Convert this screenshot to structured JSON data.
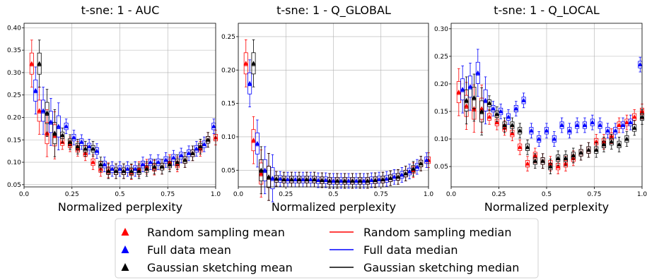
{
  "colors": {
    "random": "#ff0000",
    "full": "#0000ff",
    "gaussian": "#000000",
    "grid": "#b0b0b0"
  },
  "legend": {
    "items": [
      {
        "key": "random",
        "kind": "mean",
        "label": "Random sampling mean"
      },
      {
        "key": "full",
        "kind": "mean",
        "label": "Full data mean"
      },
      {
        "key": "gaussian",
        "kind": "mean",
        "label": "Gaussian sketching mean"
      },
      {
        "key": "random",
        "kind": "median",
        "label": "Random sampling median"
      },
      {
        "key": "full",
        "kind": "median",
        "label": "Full data median"
      },
      {
        "key": "gaussian",
        "kind": "median",
        "label": "Gaussian sketching median"
      }
    ]
  },
  "chart_data": [
    {
      "type": "box",
      "title": "t-sne: 1 - AUC",
      "xlabel": "Normalized perplexity",
      "ylabel": "",
      "xlim": [
        0,
        1
      ],
      "ylim": [
        0.045,
        0.41
      ],
      "xticks": [
        "0.0",
        "0.25",
        "0.5",
        "0.75",
        "1.0"
      ],
      "xtick_values": [
        0,
        0.25,
        0.5,
        0.75,
        1.0
      ],
      "yticks": [
        "0.05",
        "0.10",
        "0.15",
        "0.20",
        "0.25",
        "0.30",
        "0.35",
        "0.40"
      ],
      "ytick_values": [
        0.05,
        0.1,
        0.15,
        0.2,
        0.25,
        0.3,
        0.35,
        0.4
      ],
      "grid": true,
      "series": [
        {
          "key": "random",
          "x": [
            0.04,
            0.08,
            0.12,
            0.16,
            0.2,
            0.24,
            0.28,
            0.32,
            0.36,
            0.4,
            0.44,
            0.48,
            0.52,
            0.56,
            0.6,
            0.64,
            0.68,
            0.72,
            0.76,
            0.8,
            0.84,
            0.88,
            0.92,
            0.96,
            1.0
          ],
          "mean": [
            0.32,
            0.215,
            0.165,
            0.16,
            0.145,
            0.14,
            0.13,
            0.12,
            0.1,
            0.085,
            0.082,
            0.08,
            0.08,
            0.078,
            0.085,
            0.09,
            0.088,
            0.09,
            0.1,
            0.095,
            0.105,
            0.12,
            0.13,
            0.15,
            0.155
          ]
        },
        {
          "key": "full",
          "x": [
            0.06,
            0.1,
            0.14,
            0.18,
            0.22,
            0.26,
            0.3,
            0.34,
            0.38,
            0.42,
            0.46,
            0.5,
            0.54,
            0.58,
            0.62,
            0.66,
            0.7,
            0.74,
            0.78,
            0.82,
            0.86,
            0.9,
            0.94,
            0.99
          ],
          "mean": [
            0.26,
            0.215,
            0.19,
            0.18,
            0.18,
            0.155,
            0.145,
            0.135,
            0.125,
            0.095,
            0.085,
            0.085,
            0.085,
            0.085,
            0.095,
            0.1,
            0.1,
            0.105,
            0.11,
            0.115,
            0.12,
            0.13,
            0.14,
            0.18
          ]
        },
        {
          "key": "gaussian",
          "x": [
            0.08,
            0.12,
            0.16,
            0.2,
            0.24,
            0.28,
            0.32,
            0.36,
            0.4,
            0.44,
            0.48,
            0.52,
            0.56,
            0.6,
            0.64,
            0.68,
            0.72,
            0.76,
            0.8,
            0.84,
            0.88,
            0.92,
            0.96
          ],
          "mean": [
            0.32,
            0.21,
            0.165,
            0.16,
            0.145,
            0.135,
            0.13,
            0.13,
            0.095,
            0.08,
            0.08,
            0.08,
            0.08,
            0.08,
            0.085,
            0.09,
            0.09,
            0.095,
            0.1,
            0.105,
            0.12,
            0.135,
            0.15
          ]
        }
      ]
    },
    {
      "type": "box",
      "title": "t-sne: 1 - Q_GLOBAL",
      "xlabel": "Normalized perplexity",
      "ylabel": "",
      "xlim": [
        0,
        1
      ],
      "ylim": [
        0.025,
        0.27
      ],
      "xticks": [
        "0.0",
        "0.25",
        "0.5",
        "0.75",
        "1.0"
      ],
      "xtick_values": [
        0,
        0.25,
        0.5,
        0.75,
        1.0
      ],
      "yticks": [
        "0.05",
        "0.10",
        "0.15",
        "0.20",
        "0.25"
      ],
      "ytick_values": [
        0.05,
        0.1,
        0.15,
        0.2,
        0.25
      ],
      "grid": true,
      "series": [
        {
          "key": "random",
          "x": [
            0.04,
            0.08,
            0.12,
            0.16,
            0.2,
            0.24,
            0.28,
            0.32,
            0.36,
            0.4,
            0.44,
            0.48,
            0.52,
            0.56,
            0.6,
            0.64,
            0.68,
            0.72,
            0.76,
            0.8,
            0.84,
            0.88,
            0.92,
            0.96,
            1.0
          ],
          "mean": [
            0.21,
            0.095,
            0.045,
            0.04,
            0.037,
            0.036,
            0.036,
            0.036,
            0.036,
            0.036,
            0.035,
            0.034,
            0.034,
            0.034,
            0.034,
            0.034,
            0.034,
            0.035,
            0.036,
            0.038,
            0.04,
            0.045,
            0.05,
            0.06,
            0.065
          ]
        },
        {
          "key": "full",
          "x": [
            0.06,
            0.1,
            0.14,
            0.18,
            0.22,
            0.26,
            0.3,
            0.34,
            0.38,
            0.42,
            0.46,
            0.5,
            0.54,
            0.58,
            0.62,
            0.66,
            0.7,
            0.74,
            0.78,
            0.82,
            0.86,
            0.9,
            0.94,
            0.99
          ],
          "mean": [
            0.18,
            0.09,
            0.05,
            0.038,
            0.037,
            0.036,
            0.036,
            0.036,
            0.036,
            0.035,
            0.035,
            0.034,
            0.034,
            0.034,
            0.034,
            0.034,
            0.035,
            0.036,
            0.037,
            0.04,
            0.043,
            0.048,
            0.055,
            0.065
          ]
        },
        {
          "key": "gaussian",
          "x": [
            0.08,
            0.12,
            0.16,
            0.2,
            0.24,
            0.28,
            0.32,
            0.36,
            0.4,
            0.44,
            0.48,
            0.52,
            0.56,
            0.6,
            0.64,
            0.68,
            0.72,
            0.76,
            0.8,
            0.84,
            0.88,
            0.92,
            0.96
          ],
          "mean": [
            0.21,
            0.05,
            0.04,
            0.037,
            0.036,
            0.036,
            0.036,
            0.036,
            0.036,
            0.035,
            0.034,
            0.034,
            0.034,
            0.034,
            0.034,
            0.034,
            0.035,
            0.036,
            0.038,
            0.04,
            0.045,
            0.052,
            0.06
          ]
        }
      ]
    },
    {
      "type": "box",
      "title": "t-sne: 1 - Q_LOCAL",
      "xlabel": "Normalized perplexity",
      "ylabel": "",
      "xlim": [
        0,
        1
      ],
      "ylim": [
        0.013,
        0.31
      ],
      "xticks": [
        "0.0",
        "0.25",
        "0.5",
        "0.75",
        "1.0"
      ],
      "xtick_values": [
        0,
        0.25,
        0.5,
        0.75,
        1.0
      ],
      "yticks": [
        "0.05",
        "0.10",
        "0.15",
        "0.20",
        "0.25",
        "0.30"
      ],
      "ytick_values": [
        0.05,
        0.1,
        0.15,
        0.2,
        0.25,
        0.3
      ],
      "grid": true,
      "series": [
        {
          "key": "random",
          "x": [
            0.04,
            0.08,
            0.12,
            0.16,
            0.2,
            0.24,
            0.28,
            0.32,
            0.36,
            0.4,
            0.44,
            0.48,
            0.52,
            0.56,
            0.6,
            0.64,
            0.68,
            0.72,
            0.76,
            0.8,
            0.84,
            0.88,
            0.92,
            0.96,
            1.0
          ],
          "mean": [
            0.185,
            0.16,
            0.155,
            0.155,
            0.14,
            0.13,
            0.12,
            0.11,
            0.085,
            0.055,
            0.07,
            0.06,
            0.055,
            0.05,
            0.055,
            0.065,
            0.075,
            0.08,
            0.095,
            0.095,
            0.105,
            0.125,
            0.13,
            0.14,
            0.15
          ]
        },
        {
          "key": "full",
          "x": [
            0.06,
            0.1,
            0.14,
            0.18,
            0.22,
            0.26,
            0.3,
            0.34,
            0.38,
            0.42,
            0.46,
            0.5,
            0.54,
            0.58,
            0.62,
            0.66,
            0.7,
            0.74,
            0.78,
            0.82,
            0.86,
            0.9,
            0.94,
            0.99
          ],
          "mean": [
            0.19,
            0.195,
            0.22,
            0.17,
            0.155,
            0.15,
            0.14,
            0.155,
            0.17,
            0.115,
            0.1,
            0.115,
            0.1,
            0.125,
            0.115,
            0.125,
            0.125,
            0.13,
            0.125,
            0.115,
            0.115,
            0.125,
            0.13,
            0.235
          ]
        },
        {
          "key": "gaussian",
          "x": [
            0.08,
            0.12,
            0.16,
            0.2,
            0.24,
            0.28,
            0.32,
            0.36,
            0.4,
            0.44,
            0.48,
            0.52,
            0.56,
            0.6,
            0.64,
            0.68,
            0.72,
            0.76,
            0.8,
            0.84,
            0.88,
            0.92,
            0.96,
            1.0
          ],
          "mean": [
            0.17,
            0.175,
            0.15,
            0.165,
            0.145,
            0.125,
            0.125,
            0.115,
            0.085,
            0.06,
            0.06,
            0.05,
            0.065,
            0.065,
            0.07,
            0.075,
            0.08,
            0.08,
            0.09,
            0.095,
            0.09,
            0.1,
            0.12,
            0.14
          ]
        }
      ]
    }
  ]
}
